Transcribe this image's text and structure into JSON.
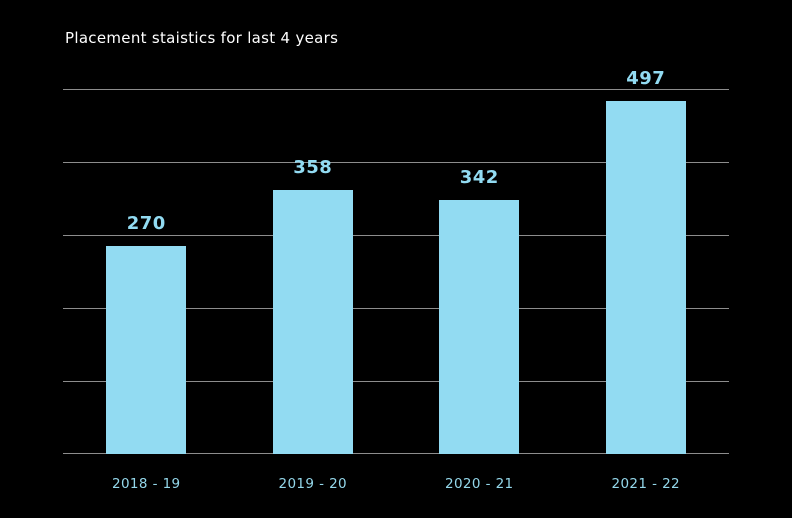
{
  "header": {
    "title": "Placement staistics for last 4 years"
  },
  "chart_data": {
    "type": "bar",
    "title": "Placement staistics for last 4 years",
    "categories": [
      "2018 - 19",
      "2019 - 20",
      "2020 - 21",
      "2021 - 22"
    ],
    "values": [
      270,
      358,
      342,
      497
    ],
    "value_labels": [
      "270",
      "358",
      "342",
      "497"
    ],
    "xlabel": "",
    "ylabel": "",
    "yaxis_tick_labels_visible": false,
    "gridline_count": 6,
    "grid": "horizontal",
    "legend_position": "none",
    "colors": {
      "background": "#000000",
      "bar": "#92dbf2",
      "value_label": "#92dbf2",
      "category_label": "#94d7ea",
      "gridline": "#8d8d8d",
      "title": "#ffffff"
    }
  }
}
